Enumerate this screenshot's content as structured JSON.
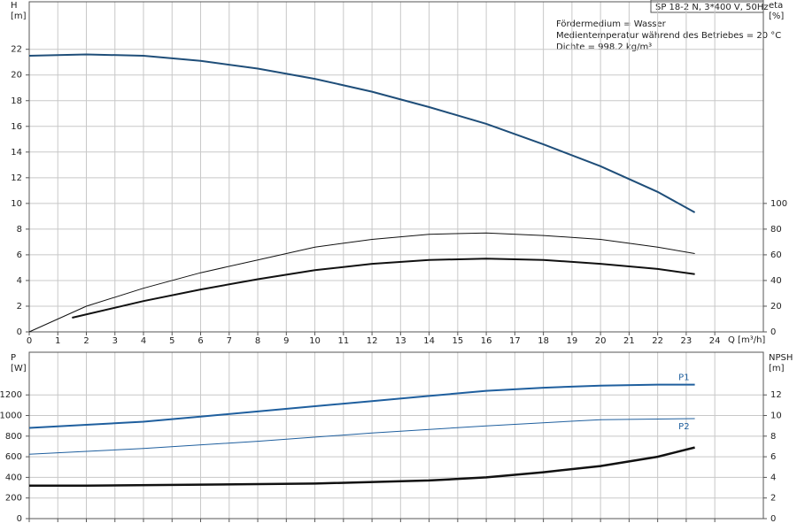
{
  "chart_data": [
    {
      "type": "line",
      "y_label": "H",
      "y_unit": "[m]",
      "y2_label": "eta",
      "y2_unit": "[%]",
      "x_label": "Q [m³/h]",
      "info": [
        "SP 18-2 N, 3*400 V, 50Hz",
        "Fördermedium = Wasser",
        "Medientemperatur während des Betriebes = 20 °C",
        "Dichte = 998.2 kg/m³"
      ],
      "xlim": [
        0,
        25.7
      ],
      "xticks": [
        0,
        1,
        2,
        3,
        4,
        5,
        6,
        7,
        8,
        9,
        10,
        11,
        12,
        13,
        14,
        15,
        16,
        17,
        18,
        19,
        20,
        21,
        22,
        23,
        24
      ],
      "ylim": [
        0,
        25.7
      ],
      "yticks": [
        0,
        2,
        4,
        6,
        8,
        10,
        12,
        14,
        16,
        18,
        20,
        22
      ],
      "y2lim": [
        0,
        257
      ],
      "y2ticks": [
        0,
        20,
        40,
        60,
        80,
        100
      ],
      "grid": true,
      "series": [
        {
          "color": "#1f4e79",
          "width": 2,
          "x": [
            0,
            2,
            4,
            6,
            8,
            10,
            12,
            14,
            16,
            18,
            20,
            22,
            23.3
          ],
          "values": [
            21.5,
            21.6,
            21.5,
            21.1,
            20.5,
            19.7,
            18.7,
            17.5,
            16.2,
            14.6,
            12.9,
            10.9,
            9.3
          ]
        },
        {
          "color": "#111111",
          "width": 1,
          "axis": "y2",
          "x": [
            0,
            2,
            4,
            6,
            8,
            10,
            12,
            14,
            16,
            18,
            20,
            22,
            23.3
          ],
          "values": [
            0,
            20,
            34,
            46,
            56,
            66,
            72,
            76,
            77,
            75,
            72,
            66,
            61
          ]
        },
        {
          "color": "#111111",
          "width": 2,
          "axis": "y2",
          "x": [
            1.5,
            4,
            6,
            8,
            10,
            12,
            14,
            16,
            18,
            20,
            22,
            23.3
          ],
          "values": [
            11,
            24,
            33,
            41,
            48,
            53,
            56,
            57,
            56,
            53,
            49,
            45
          ]
        }
      ]
    },
    {
      "type": "line",
      "y_label": "P",
      "y_unit": "[W]",
      "y2_label": "NPSH",
      "y2_unit": "[m]",
      "xlim": [
        0,
        25.7
      ],
      "ylim": [
        0,
        1614
      ],
      "yticks": [
        0,
        200,
        400,
        600,
        800,
        1000,
        1200
      ],
      "y2lim": [
        0,
        16.14
      ],
      "y2ticks": [
        0,
        2,
        4,
        6,
        8,
        10,
        12
      ],
      "grid": true,
      "series": [
        {
          "name": "P1",
          "color": "#1f5f9e",
          "width": 2,
          "x": [
            0,
            2,
            4,
            6,
            8,
            10,
            12,
            14,
            16,
            18,
            20,
            22,
            23.3
          ],
          "values": [
            880,
            910,
            940,
            990,
            1040,
            1090,
            1140,
            1190,
            1240,
            1270,
            1290,
            1300,
            1300
          ]
        },
        {
          "name": "P2",
          "color": "#1f5f9e",
          "width": 1,
          "x": [
            0,
            4,
            8,
            12,
            16,
            20,
            23.3
          ],
          "values": [
            625,
            680,
            750,
            830,
            900,
            960,
            970
          ]
        },
        {
          "color": "#111111",
          "width": 2.5,
          "axis": "y2",
          "x": [
            0,
            2,
            6,
            10,
            14,
            16,
            18,
            20,
            22,
            23.3
          ],
          "values": [
            3.2,
            3.2,
            3.3,
            3.4,
            3.7,
            4.0,
            4.5,
            5.1,
            6.0,
            6.9
          ]
        }
      ]
    }
  ]
}
